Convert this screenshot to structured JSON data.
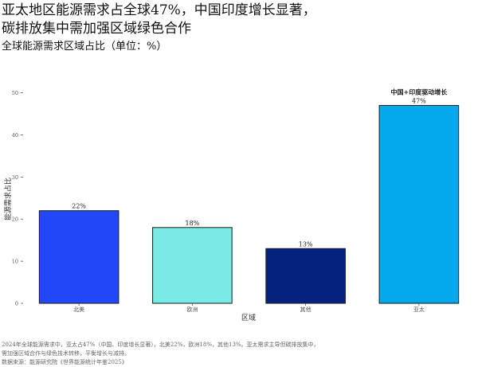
{
  "chart_data": {
    "type": "bar",
    "title_lines": [
      "亚太地区能源需求占全球47%，中国印度增长显著，",
      "碳排放集中需加强区域绿色合作"
    ],
    "subtitle": "全球能源需求区域占比（单位：%）",
    "xlabel": "区域",
    "ylabel": "能源需求占比",
    "categories": [
      "北美",
      "欧洲",
      "其他",
      "亚太"
    ],
    "values": [
      22,
      18,
      13,
      47
    ],
    "value_labels": [
      "22%",
      "18%",
      "13%",
      "47%"
    ],
    "colors": [
      "#2248f5",
      "#7aebe4",
      "#05237e",
      "#04a8ec"
    ],
    "ylim": [
      0,
      52
    ],
    "yticks": [
      0,
      10,
      20,
      30,
      40,
      50
    ],
    "grid": false,
    "annotation": {
      "category": "亚太",
      "text": "中国+印度驱动增长"
    }
  },
  "caption_lines": [
    "2024年全球能源需求中，亚太占47%（中国、印度增长显著），北美22%，欧洲18%，其他13%。亚太需求主导但碳排放集中，",
    "需加强区域合作与绿色技术转移，平衡增长与减排。",
    "数据来源：能源研究院《世界能源统计年鉴2025》"
  ]
}
